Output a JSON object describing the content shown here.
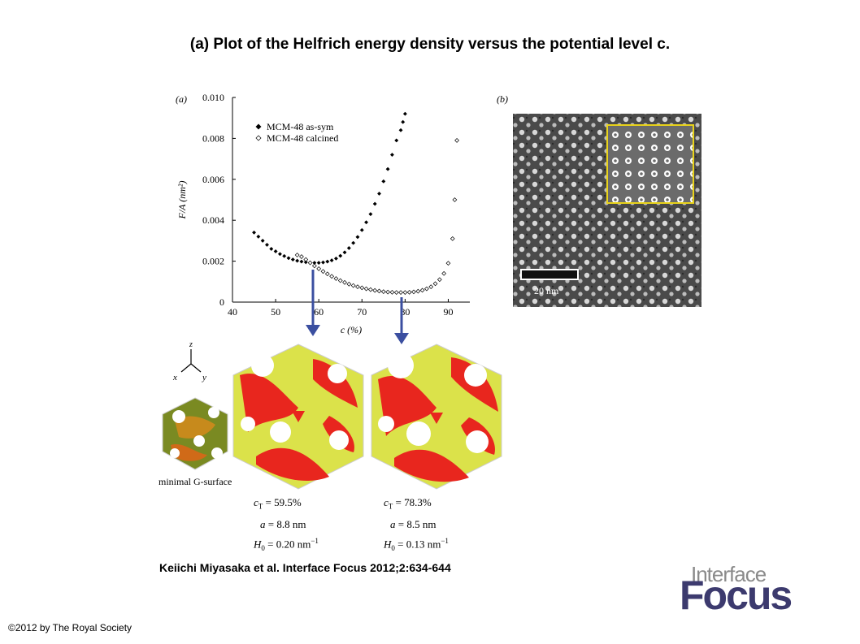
{
  "title": "(a) Plot of the Helfrich energy density versus the potential level c.",
  "citation": "Keiichi Miyasaka et al. Interface Focus 2012;2:634-644",
  "copyright": "©2012 by The Royal Society",
  "logo": {
    "top": "Interface",
    "bottom": "Focus"
  },
  "panel_a_label": "(a)",
  "panel_b_label": "(b)",
  "scale_bar_label": "20 nm",
  "axes_labels": {
    "x": "x",
    "y": "y",
    "z": "z"
  },
  "minimal_surface_label": "minimal G-surface",
  "structures": [
    {
      "cT": "c",
      "cT_sub": "T",
      "cT_value": " = 59.5%",
      "a_label": "a",
      "a_value": " = 8.8 nm",
      "H0_label": "H",
      "H0_sub": "0",
      "H0_value": " = 0.20 nm",
      "H0_exp": "−1"
    },
    {
      "cT": "c",
      "cT_sub": "T",
      "cT_value": " = 78.3%",
      "a_label": "a",
      "a_value": " = 8.5 nm",
      "H0_label": "H",
      "H0_sub": "0",
      "H0_value": " = 0.13 nm",
      "H0_exp": "−1"
    }
  ],
  "colors": {
    "arrow": "#3b4fa0",
    "inset_border": "#e8d21a",
    "surface_red": "#e8261e",
    "surface_yellow": "#dbe24a"
  },
  "chart_data": {
    "type": "scatter",
    "xlabel": "c (%)",
    "ylabel": "F/A (nm²)",
    "xlim": [
      40,
      95
    ],
    "ylim": [
      0,
      0.01
    ],
    "xticks": [
      "40",
      "50",
      "60",
      "70",
      "80",
      "90"
    ],
    "yticks": [
      "0",
      "0.002",
      "0.004",
      "0.006",
      "0.008",
      "0.010"
    ],
    "legend_position": "top-left",
    "series": [
      {
        "name": "MCM-48 as-sym",
        "marker": "filled-diamond",
        "x": [
          45,
          46,
          47,
          48,
          49,
          50,
          51,
          52,
          53,
          54,
          55,
          56,
          57,
          58,
          59,
          60,
          61,
          62,
          63,
          64,
          65,
          66,
          67,
          68,
          69,
          70,
          71,
          72,
          73,
          74,
          75,
          76,
          77,
          78,
          79,
          79.5,
          80
        ],
        "y": [
          0.0034,
          0.0032,
          0.003,
          0.0028,
          0.0026,
          0.00248,
          0.00235,
          0.00225,
          0.00215,
          0.00208,
          0.00202,
          0.00198,
          0.00195,
          0.00193,
          0.00192,
          0.00192,
          0.00194,
          0.00198,
          0.00204,
          0.00213,
          0.00226,
          0.00243,
          0.00264,
          0.00289,
          0.00318,
          0.00352,
          0.0039,
          0.0043,
          0.0048,
          0.0053,
          0.0059,
          0.0065,
          0.0072,
          0.0079,
          0.0084,
          0.0088,
          0.0092
        ]
      },
      {
        "name": "MCM-48 calcined",
        "marker": "open-diamond",
        "x": [
          55,
          56,
          57,
          58,
          59,
          60,
          61,
          62,
          63,
          64,
          65,
          66,
          67,
          68,
          69,
          70,
          71,
          72,
          73,
          74,
          75,
          76,
          77,
          78,
          79,
          80,
          81,
          82,
          83,
          84,
          85,
          86,
          87,
          88,
          89,
          90,
          91,
          91.5,
          92
        ],
        "y": [
          0.0023,
          0.00222,
          0.00208,
          0.00192,
          0.00177,
          0.00163,
          0.0015,
          0.00138,
          0.00126,
          0.00115,
          0.00105,
          0.00096,
          0.00088,
          0.00081,
          0.00075,
          0.0007,
          0.00065,
          0.00061,
          0.00057,
          0.00054,
          0.00051,
          0.00049,
          0.00048,
          0.00047,
          0.00047,
          0.00047,
          0.00048,
          0.0005,
          0.00053,
          0.00058,
          0.00065,
          0.00075,
          0.0009,
          0.0011,
          0.0014,
          0.0019,
          0.0031,
          0.005,
          0.0079
        ]
      }
    ]
  }
}
